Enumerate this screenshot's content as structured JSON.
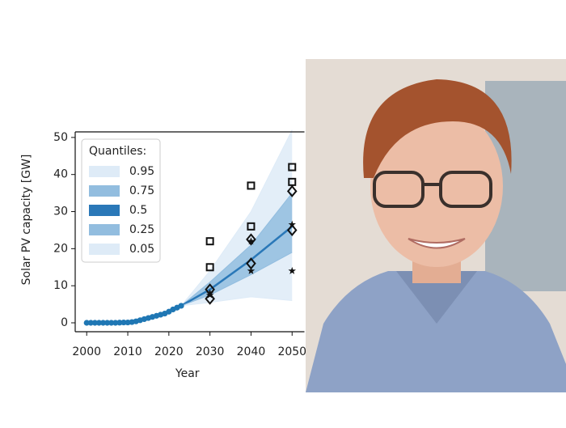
{
  "chart_data": {
    "type": "line",
    "xlabel": "Year",
    "ylabel": "Solar PV capacity [GW]",
    "xlim": [
      1997.2,
      2053
    ],
    "ylim": [
      -2.4,
      51.5
    ],
    "xticks": [
      2000,
      2010,
      2020,
      2030,
      2040,
      2050
    ],
    "yticks": [
      0,
      10,
      20,
      30,
      40,
      50
    ],
    "history": {
      "color": "#1f77b4",
      "x": [
        2000,
        2001,
        2002,
        2003,
        2004,
        2005,
        2006,
        2007,
        2008,
        2009,
        2010,
        2011,
        2012,
        2013,
        2014,
        2015,
        2016,
        2017,
        2018,
        2019,
        2020,
        2021,
        2022,
        2023
      ],
      "values": [
        0,
        0,
        0,
        0,
        0,
        0,
        0,
        0,
        0.05,
        0.1,
        0.1,
        0.2,
        0.4,
        0.7,
        1.0,
        1.3,
        1.6,
        1.9,
        2.2,
        2.5,
        3.0,
        3.6,
        4.1,
        4.6
      ]
    },
    "legend_title": "Quantiles:",
    "quantiles": {
      "x": [
        2023,
        2030,
        2040,
        2050
      ],
      "series": [
        {
          "name": "0.95",
          "color": "#deebf7",
          "values": [
            4.6,
            14,
            30,
            52
          ]
        },
        {
          "name": "0.75",
          "color": "#92bddf",
          "values": [
            4.6,
            11,
            21,
            35
          ]
        },
        {
          "name": "0.5",
          "color": "#2a78b8",
          "values": [
            4.6,
            9,
            17,
            26
          ]
        },
        {
          "name": "0.25",
          "color": "#92bddf",
          "values": [
            4.6,
            7.5,
            13,
            19
          ]
        },
        {
          "name": "0.05",
          "color": "#deebf7",
          "values": [
            4.6,
            5.5,
            7,
            6
          ]
        }
      ]
    },
    "scenarios": [
      {
        "marker": "square",
        "x": [
          2030,
          2030,
          2040,
          2040,
          2050,
          2050
        ],
        "values": [
          22,
          15,
          37,
          26,
          42,
          38
        ]
      },
      {
        "marker": "diamond",
        "x": [
          2030,
          2030,
          2040,
          2040,
          2050,
          2050
        ],
        "values": [
          9,
          6.5,
          22.5,
          16,
          35.5,
          25
        ]
      },
      {
        "marker": "star",
        "x": [
          2030,
          2030,
          2040,
          2040,
          2050,
          2050
        ],
        "values": [
          8,
          7.5,
          22,
          14,
          26.5,
          14
        ]
      }
    ]
  }
}
